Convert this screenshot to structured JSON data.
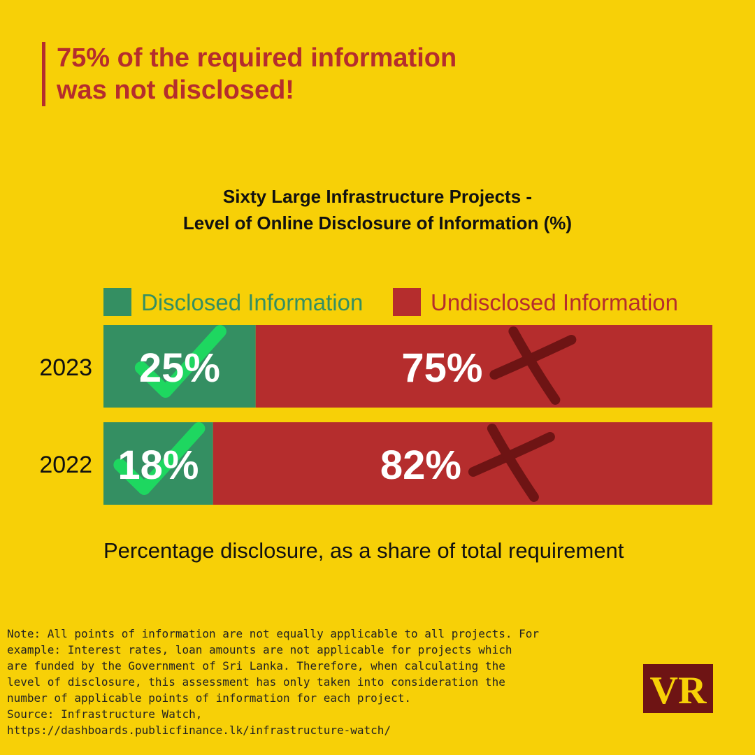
{
  "headline": {
    "line1": "75% of the required information",
    "line2": "was not disclosed!"
  },
  "chart_data": {
    "type": "bar",
    "orientation": "horizontal",
    "stacked": true,
    "title_line1": "Sixty Large Infrastructure Projects -",
    "title_line2": "Level of Online Disclosure of Information (%)",
    "categories": [
      "2023",
      "2022"
    ],
    "series": [
      {
        "name": "Disclosed Information",
        "values": [
          25,
          18
        ],
        "color": "#348F62"
      },
      {
        "name": "Undisclosed Information",
        "values": [
          75,
          82
        ],
        "color": "#B52D2D"
      }
    ],
    "value_labels": [
      [
        "25%",
        "18%"
      ],
      [
        "75%",
        "82%"
      ]
    ],
    "xlim": [
      0,
      100
    ],
    "xlabel": "Percentage disclosure, as a share of total requirement",
    "legend_position": "top",
    "grid": false
  },
  "icons": {
    "disclosed": "check-icon",
    "undisclosed": "cross-icon",
    "check_color": "#1ED760",
    "cross_color": "#6E1414"
  },
  "note": {
    "lines": [
      "Note: All points of information are not equally applicable to all projects. For",
      "example: Interest rates, loan amounts are not applicable for projects which",
      "are funded by the Government of Sri Lanka. Therefore, when calculating the",
      "level of disclosure, this assessment has only taken into consideration the",
      "number of applicable points of information for each project.",
      "Source: Infrastructure Watch,",
      "https://dashboards.publicfinance.lk/infrastructure-watch/"
    ]
  },
  "logo": {
    "text": "VR",
    "bg_color": "#6E1414",
    "text_color": "#F7D007"
  }
}
